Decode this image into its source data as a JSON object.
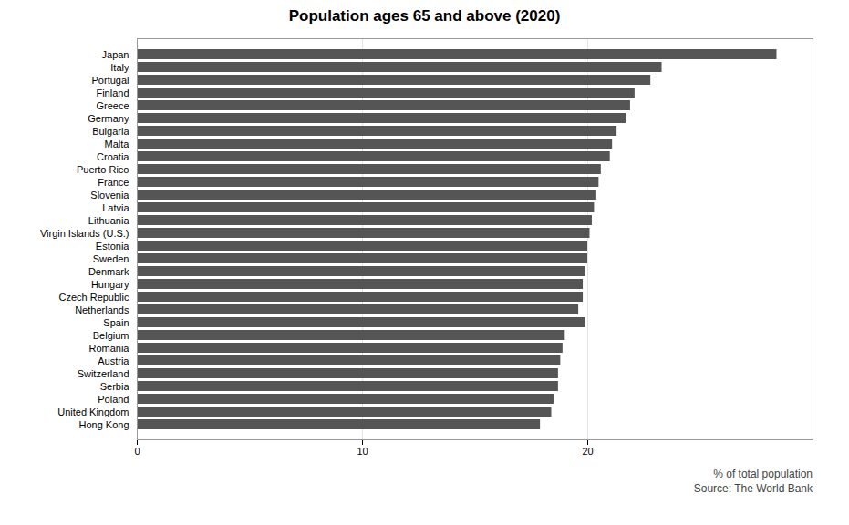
{
  "chart_data": {
    "type": "bar",
    "orientation": "horizontal",
    "title": "Population ages 65 and above (2020)",
    "xlabel": "% of total population",
    "annotations": [
      "Source: The World Bank"
    ],
    "categories": [
      "Japan",
      "Italy",
      "Portugal",
      "Finland",
      "Greece",
      "Germany",
      "Bulgaria",
      "Malta",
      "Croatia",
      "Puerto Rico",
      "France",
      "Slovenia",
      "Latvia",
      "Lithuania",
      "Virgin Islands (U.S.)",
      "Estonia",
      "Sweden",
      "Denmark",
      "Hungary",
      "Czech Republic",
      "Netherlands",
      "Spain",
      "Belgium",
      "Romania",
      "Austria",
      "Switzerland",
      "Serbia",
      "Poland",
      "United Kingdom",
      "Hong Kong"
    ],
    "values": [
      28.4,
      23.3,
      22.8,
      22.1,
      21.9,
      21.7,
      21.3,
      21.1,
      21.0,
      20.6,
      20.5,
      20.4,
      20.3,
      20.2,
      20.1,
      20.0,
      20.0,
      19.9,
      19.8,
      19.8,
      19.6,
      19.9,
      19.0,
      18.9,
      18.8,
      18.7,
      18.7,
      18.5,
      18.4,
      17.9
    ],
    "color": "#555555",
    "xlim": [
      0,
      30
    ],
    "xticks": [
      0,
      10,
      20
    ],
    "grid": true
  }
}
